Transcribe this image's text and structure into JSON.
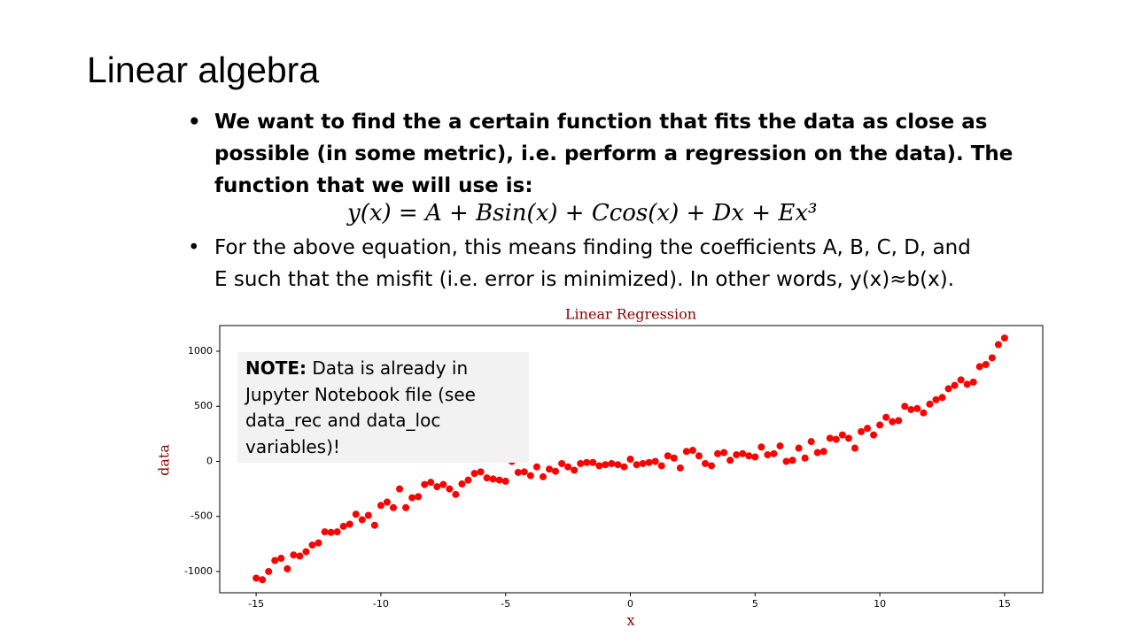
{
  "slide": {
    "title": "Linear algebra",
    "bullets": [
      {
        "lines": [
          "We want to find the a certain function that fits the data as close as",
          "possible (in some metric), i.e. perform a regression on the data). The",
          "function that we will use is:"
        ]
      },
      {
        "lines": [
          "For the above equation, this means finding the coefficients A, B, C, D, and",
          "E such that the misfit (i.e. error is minimized). In other words, y(x)≈b(x)."
        ]
      }
    ],
    "equation": "y(x) = A + Bsin(x) + Ccos(x) + Dx + Ex³",
    "note": {
      "label": "NOTE:",
      "lines": [
        "Data is already in",
        "Jupyter Notebook file (see",
        "data_rec and data_loc",
        "variables)!"
      ]
    }
  },
  "chart_data": {
    "type": "scatter",
    "title": "Linear Regression",
    "xlabel": "x",
    "ylabel": "data",
    "color": "#ff0000",
    "x": [
      -15,
      -14.75,
      -14.5,
      -14.25,
      -14,
      -13.75,
      -13.5,
      -13.25,
      -13,
      -12.75,
      -12.5,
      -12.25,
      -12,
      -11.75,
      -11.5,
      -11.25,
      -11,
      -10.75,
      -10.5,
      -10.25,
      -10,
      -9.75,
      -9.5,
      -9.25,
      -9,
      -8.75,
      -8.5,
      -8.25,
      -8,
      -7.75,
      -7.5,
      -7.25,
      -7,
      -6.75,
      -6.5,
      -6.25,
      -6,
      -5.75,
      -5.5,
      -5.25,
      -5,
      -4.75,
      -4.5,
      -4.25,
      -4,
      -3.75,
      -3.5,
      -3.25,
      -3,
      -2.75,
      -2.5,
      -2.25,
      -2,
      -1.75,
      -1.5,
      -1.25,
      -1,
      -0.75,
      -0.5,
      -0.25,
      0,
      0.25,
      0.5,
      0.75,
      1,
      1.25,
      1.5,
      1.75,
      2,
      2.25,
      2.5,
      2.75,
      3,
      3.25,
      3.5,
      3.75,
      4,
      4.25,
      4.5,
      4.75,
      5,
      5.25,
      5.5,
      5.75,
      6,
      6.25,
      6.5,
      6.75,
      7,
      7.25,
      7.5,
      7.75,
      8,
      8.25,
      8.5,
      8.75,
      9,
      9.25,
      9.5,
      9.75,
      10,
      10.25,
      10.5,
      10.75,
      11,
      11.25,
      11.5,
      11.75,
      12,
      12.25,
      12.5,
      12.75,
      13,
      13.25,
      13.5,
      13.75,
      14,
      14.25,
      14.5,
      14.75,
      15
    ],
    "values": [
      -1060,
      -1075,
      -1000,
      -900,
      -880,
      -975,
      -850,
      -860,
      -820,
      -760,
      -740,
      -640,
      -645,
      -640,
      -590,
      -570,
      -480,
      -530,
      -490,
      -580,
      -400,
      -370,
      -420,
      -250,
      -420,
      -330,
      -320,
      -210,
      -190,
      -230,
      -210,
      -250,
      -300,
      -205,
      -170,
      -110,
      -95,
      -150,
      -160,
      -170,
      -180,
      0,
      -100,
      -95,
      -130,
      -50,
      -140,
      -70,
      -90,
      -20,
      -50,
      -80,
      -20,
      -10,
      -10,
      -40,
      -30,
      -20,
      -30,
      -50,
      20,
      -30,
      -20,
      -10,
      0,
      -40,
      50,
      30,
      -60,
      90,
      100,
      50,
      -20,
      -40,
      70,
      80,
      10,
      60,
      70,
      50,
      40,
      130,
      60,
      70,
      140,
      0,
      10,
      120,
      30,
      180,
      80,
      90,
      210,
      200,
      240,
      210,
      120,
      270,
      300,
      240,
      330,
      400,
      360,
      370,
      500,
      470,
      480,
      440,
      520,
      560,
      580,
      660,
      690,
      740,
      700,
      720,
      860,
      880,
      940,
      1060,
      1120
    ],
    "xlim": [
      -16.46,
      16.53
    ],
    "ylim": [
      -1193,
      1233
    ],
    "xticks": [
      -15,
      -10,
      -5,
      0,
      5,
      10,
      15
    ],
    "yticks": [
      -1000,
      -500,
      0,
      500,
      1000
    ]
  }
}
